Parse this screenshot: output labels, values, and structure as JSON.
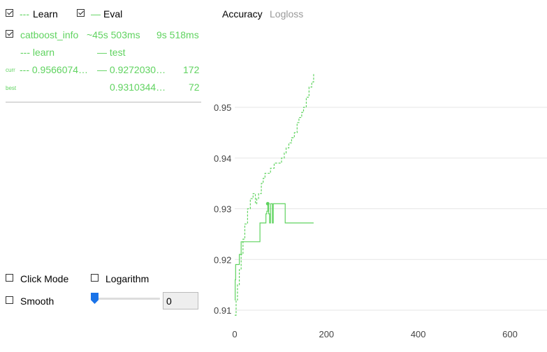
{
  "legend": {
    "learn": {
      "symbol": "---",
      "label": "Learn",
      "checked": true
    },
    "eval": {
      "symbol": "—",
      "label": "Eval",
      "checked": true
    }
  },
  "run": {
    "name": "catboost_info",
    "elapsed": "~45s 503ms",
    "remaining": "9s 518ms",
    "checked": true,
    "columns": {
      "learn": "--- learn",
      "test": "— test"
    },
    "curr": {
      "label": "curr",
      "learn": "--- 0.9566074…",
      "test": "— 0.9272030…",
      "iter": "172"
    },
    "best": {
      "label": "best",
      "test": "0.9310344…",
      "iter": "72"
    }
  },
  "controls": {
    "click_mode": {
      "label": "Click Mode",
      "checked": false
    },
    "logarithm": {
      "label": "Logarithm",
      "checked": false
    },
    "smooth": {
      "label": "Smooth",
      "checked": false
    },
    "smooth_value": "0"
  },
  "tabs": {
    "accuracy": "Accuracy",
    "logloss": "Logloss"
  },
  "colors": {
    "series": "#5fd35f",
    "grid": "#e6e6e6",
    "accent": "#1a73e8"
  },
  "chart_data": {
    "type": "line",
    "xlim": [
      0,
      680
    ],
    "ylim": [
      0.909,
      0.957
    ],
    "xticks": [
      0,
      200,
      400,
      600
    ],
    "yticks": [
      0.91,
      0.92,
      0.93,
      0.94,
      0.95
    ],
    "xtick_labels": [
      "0",
      "200",
      "400",
      "600"
    ],
    "ytick_labels": [
      "0.91",
      "0.92",
      "0.93",
      "0.94",
      "0.95"
    ],
    "grid": true,
    "series": [
      {
        "name": "learn",
        "dash": true,
        "x": [
          0,
          3,
          6,
          10,
          14,
          18,
          22,
          28,
          34,
          40,
          45,
          48,
          52,
          58,
          62,
          66,
          70,
          78,
          86,
          92,
          96,
          102,
          108,
          112,
          118,
          124,
          130,
          136,
          140,
          146,
          150,
          156,
          162,
          168,
          172
        ],
        "y": [
          0.909,
          0.912,
          0.915,
          0.918,
          0.921,
          0.924,
          0.927,
          0.93,
          0.932,
          0.933,
          0.931,
          0.932,
          0.933,
          0.935,
          0.936,
          0.937,
          0.937,
          0.938,
          0.939,
          0.939,
          0.939,
          0.94,
          0.941,
          0.942,
          0.943,
          0.944,
          0.945,
          0.947,
          0.948,
          0.949,
          0.95,
          0.952,
          0.954,
          0.955,
          0.9566
        ]
      },
      {
        "name": "test",
        "dash": false,
        "x": [
          0,
          1,
          2,
          4,
          6,
          10,
          14,
          20,
          30,
          40,
          50,
          55,
          58,
          62,
          66,
          68,
          70,
          72,
          74,
          76,
          78,
          80,
          82,
          84,
          86,
          88,
          92,
          96,
          100,
          104,
          108,
          110,
          114,
          120,
          130,
          140,
          150,
          160,
          172
        ],
        "y": [
          0.912,
          0.916,
          0.919,
          0.919,
          0.919,
          0.921,
          0.9235,
          0.9235,
          0.9235,
          0.9235,
          0.9235,
          0.9272,
          0.9272,
          0.9272,
          0.9272,
          0.929,
          0.9295,
          0.931,
          0.929,
          0.9272,
          0.931,
          0.931,
          0.9272,
          0.931,
          0.931,
          0.931,
          0.931,
          0.931,
          0.931,
          0.931,
          0.931,
          0.9272,
          0.9272,
          0.9272,
          0.9272,
          0.9272,
          0.9272,
          0.9272,
          0.9272
        ]
      }
    ],
    "best_point": {
      "x": 72,
      "y": 0.931
    }
  }
}
